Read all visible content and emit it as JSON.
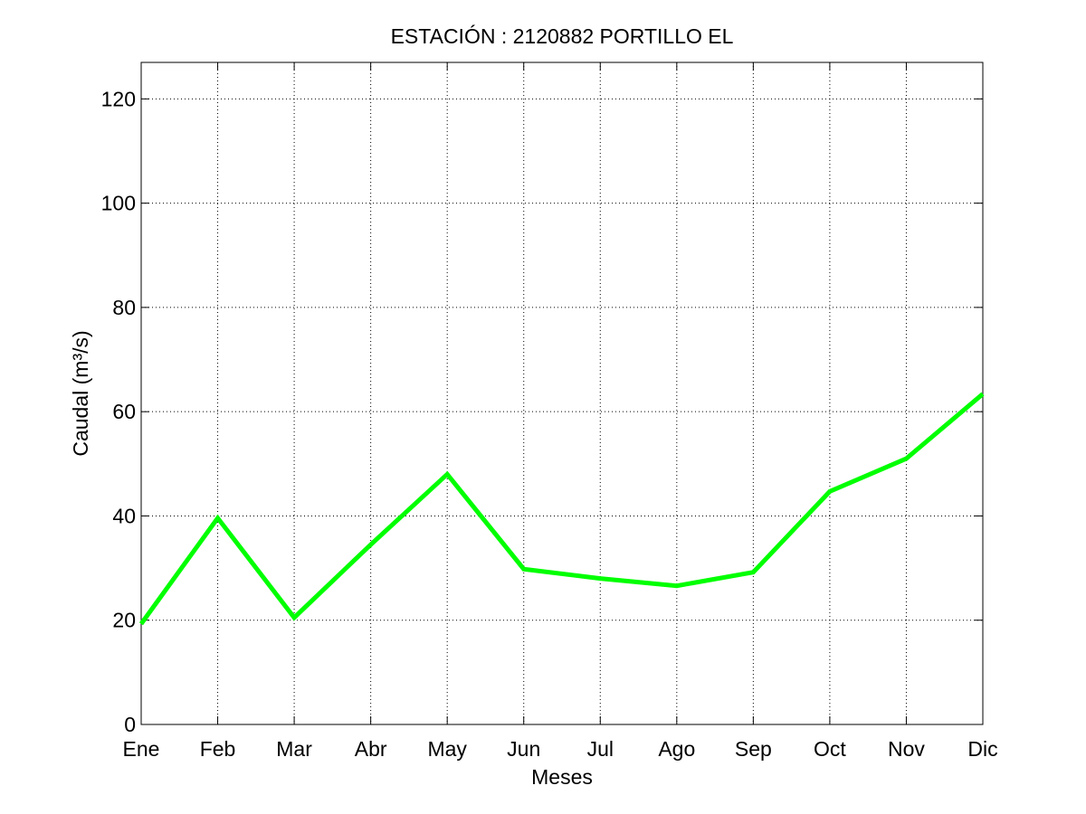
{
  "chart_data": {
    "type": "line",
    "title": "ESTACIÓN :  2120882  PORTILLO EL",
    "xlabel": "Meses",
    "ylabel": "Caudal (m³/s)",
    "categories": [
      "Ene",
      "Feb",
      "Mar",
      "Abr",
      "May",
      "Jun",
      "Jul",
      "Ago",
      "Sep",
      "Oct",
      "Nov",
      "Dic"
    ],
    "series": [
      {
        "values": [
          19.3,
          39.6,
          20.5,
          34.5,
          48.0,
          29.8,
          28.0,
          26.6,
          29.2,
          44.7,
          51.0,
          63.4
        ]
      }
    ],
    "ylim": [
      0,
      127
    ],
    "yticks": [
      0,
      20,
      40,
      60,
      80,
      100,
      120
    ],
    "grid": true,
    "line_color": "#00ff00"
  }
}
